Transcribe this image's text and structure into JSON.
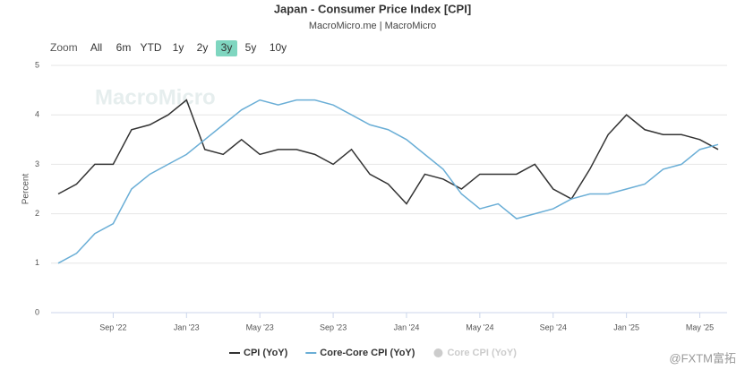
{
  "chart_data": {
    "type": "line",
    "title": "Japan - Consumer Price Index [CPI]",
    "subtitle": "MacroMicro.me | MacroMicro",
    "watermark": "MacroMicro",
    "credit": "@FXTM富拓",
    "zoom_label": "Zoom",
    "zoom_options": [
      "All",
      "6m",
      "YTD",
      "1y",
      "2y",
      "3y",
      "5y",
      "10y"
    ],
    "zoom_selected": "3y",
    "y_label": "Percent",
    "x": [
      "2022-06",
      "2022-07",
      "2022-08",
      "2022-09",
      "2022-10",
      "2022-11",
      "2022-12",
      "2023-01",
      "2023-02",
      "2023-03",
      "2023-04",
      "2023-05",
      "2023-06",
      "2023-07",
      "2023-08",
      "2023-09",
      "2023-10",
      "2023-11",
      "2023-12",
      "2024-01",
      "2024-02",
      "2024-03",
      "2024-04",
      "2024-05",
      "2024-06",
      "2024-07",
      "2024-08",
      "2024-09",
      "2024-10",
      "2024-11",
      "2024-12",
      "2025-01",
      "2025-02",
      "2025-03",
      "2025-04",
      "2025-05",
      "2025-06"
    ],
    "series": [
      {
        "name": "CPI (YoY)",
        "color": "#333333",
        "visible": true,
        "values": [
          2.4,
          2.6,
          3.0,
          3.0,
          3.7,
          3.8,
          4.0,
          4.3,
          3.3,
          3.2,
          3.5,
          3.2,
          3.3,
          3.3,
          3.2,
          3.0,
          3.3,
          2.8,
          2.6,
          2.2,
          2.8,
          2.7,
          2.5,
          2.8,
          2.8,
          2.8,
          3.0,
          2.5,
          2.3,
          2.9,
          3.6,
          4.0,
          3.7,
          3.6,
          3.6,
          3.5,
          3.3
        ]
      },
      {
        "name": "Core-Core CPI (YoY)",
        "color": "#6aaed6",
        "visible": true,
        "values": [
          1.0,
          1.2,
          1.6,
          1.8,
          2.5,
          2.8,
          3.0,
          3.2,
          3.5,
          3.8,
          4.1,
          4.3,
          4.2,
          4.3,
          4.3,
          4.2,
          4.0,
          3.8,
          3.7,
          3.5,
          3.2,
          2.9,
          2.4,
          2.1,
          2.2,
          1.9,
          2.0,
          2.1,
          2.3,
          2.4,
          2.4,
          2.5,
          2.6,
          2.9,
          3.0,
          3.3,
          3.4
        ]
      },
      {
        "name": "Core CPI (YoY)",
        "color": "#cccccc",
        "visible": false
      }
    ],
    "xlim": [
      "2022-06",
      "2025-06"
    ],
    "xticks": [
      {
        "value": "2022-09",
        "label": "Sep '22"
      },
      {
        "value": "2023-01",
        "label": "Jan '23"
      },
      {
        "value": "2023-05",
        "label": "May '23"
      },
      {
        "value": "2023-09",
        "label": "Sep '23"
      },
      {
        "value": "2024-01",
        "label": "Jan '24"
      },
      {
        "value": "2024-05",
        "label": "May '24"
      },
      {
        "value": "2024-09",
        "label": "Sep '24"
      },
      {
        "value": "2025-01",
        "label": "Jan '25"
      },
      {
        "value": "2025-05",
        "label": "May '25"
      }
    ],
    "ylim": [
      0,
      5
    ],
    "yticks": [
      0,
      1,
      2,
      3,
      4,
      5
    ],
    "grid": true
  }
}
